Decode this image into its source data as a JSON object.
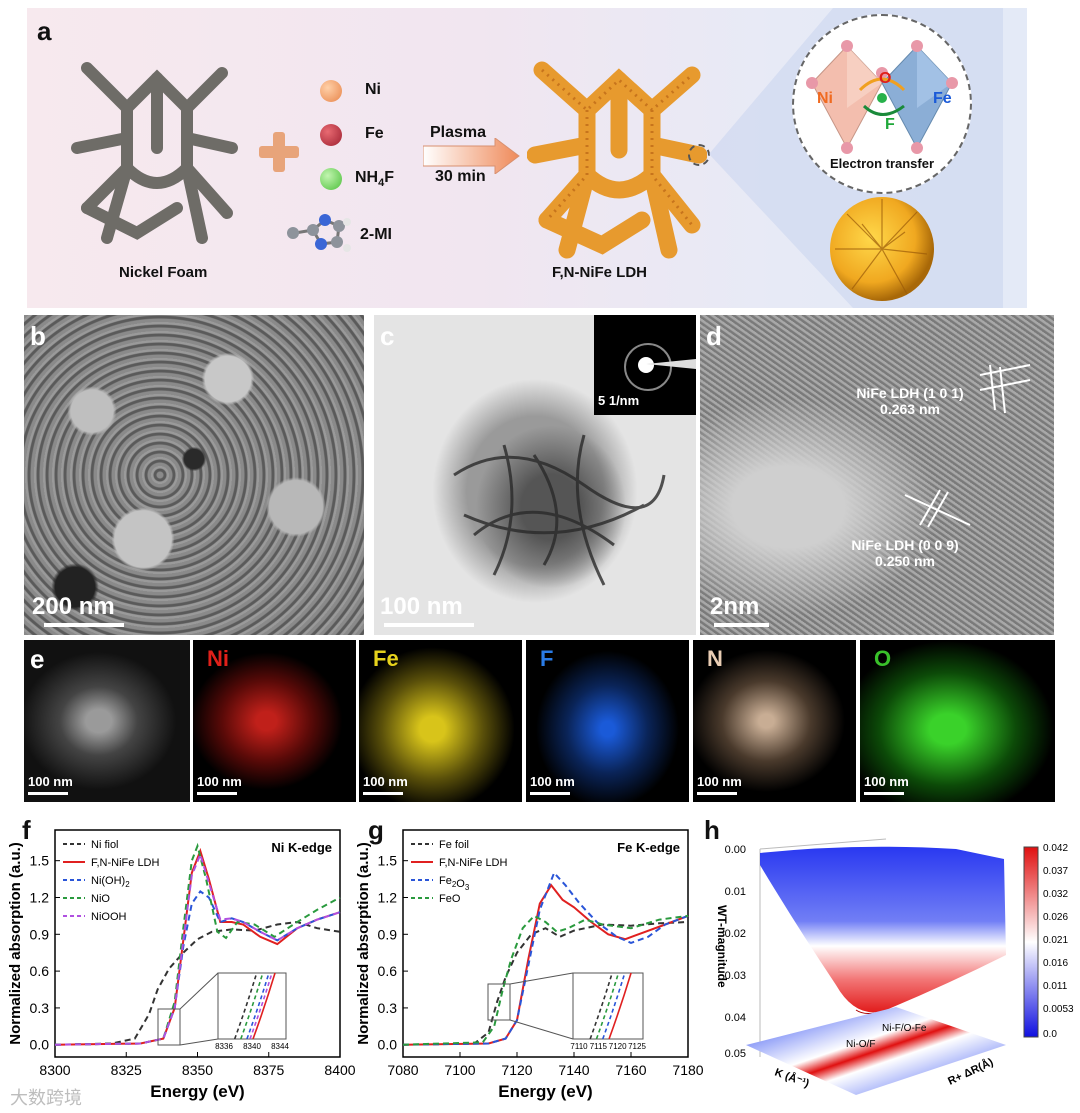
{
  "panel_a": {
    "letter": "a",
    "nickel_foam_label": "Nickel Foam",
    "reagents": [
      {
        "symbol": "Ni",
        "color": "#f0a06a"
      },
      {
        "symbol": "Fe",
        "color": "#b8343f"
      },
      {
        "symbol": "NH4F",
        "color": "#6ccf5a"
      },
      {
        "symbol": "2-MI",
        "color": "#9aa0a8"
      }
    ],
    "arrow_top": "Plasma",
    "arrow_bottom": "30 min",
    "product_label": "F,N-NiFe LDH",
    "inset_ni": "Ni",
    "inset_o": "O",
    "inset_fe": "Fe",
    "inset_f": "F",
    "inset_caption": "Electron transfer"
  },
  "panel_b": {
    "letter": "b",
    "scale": "200 nm"
  },
  "panel_c": {
    "letter": "c",
    "scale": "100 nm",
    "inset_scale": "5 1/nm"
  },
  "panel_d": {
    "letter": "d",
    "scale": "2nm",
    "lattice1_line1": "NiFe LDH (1 0 1)",
    "lattice1_line2": "0.263 nm",
    "lattice2_line1": "NiFe LDH (0 0 9)",
    "lattice2_line2": "0.250 nm"
  },
  "panel_e": {
    "letter": "e",
    "maps": [
      {
        "label": "",
        "scale": "100 nm",
        "color": "#dddddd"
      },
      {
        "label": "Ni",
        "scale": "100 nm",
        "color": "#e0201a"
      },
      {
        "label": "Fe",
        "scale": "100 nm",
        "color": "#e6d21c"
      },
      {
        "label": "F",
        "scale": "100 nm",
        "color": "#2a7be6"
      },
      {
        "label": "N",
        "scale": "100 nm",
        "color": "#e9cdb4"
      },
      {
        "label": "O",
        "scale": "100 nm",
        "color": "#39c12a"
      }
    ]
  },
  "chart_data": [
    {
      "panel": "f",
      "type": "line",
      "annotation": "Ni K-edge",
      "xlabel": "Energy (eV)",
      "ylabel": "Normalized absorption (a.u.)",
      "xlim": [
        8300,
        8400
      ],
      "ylim": [
        -0.1,
        1.75
      ],
      "xticks": [
        8300,
        8325,
        8350,
        8375,
        8400
      ],
      "yticks": [
        0.0,
        0.3,
        0.6,
        0.9,
        1.2,
        1.5
      ],
      "inset_xticks": [
        8336,
        8340,
        8344
      ],
      "series": [
        {
          "name": "Ni fiol",
          "color": "#333333",
          "dash": "6,4",
          "x": [
            8300,
            8320,
            8328,
            8333,
            8336,
            8340,
            8345,
            8350,
            8355,
            8362,
            8370,
            8378,
            8385,
            8392,
            8400
          ],
          "y": [
            0.0,
            0.01,
            0.05,
            0.25,
            0.45,
            0.62,
            0.75,
            0.86,
            0.92,
            0.94,
            0.93,
            0.98,
            1.0,
            0.95,
            0.92
          ]
        },
        {
          "name": "F,N-NiFe LDH",
          "color": "#e02020",
          "dash": "",
          "x": [
            8300,
            8330,
            8338,
            8342,
            8345,
            8348,
            8351,
            8354,
            8358,
            8362,
            8366,
            8372,
            8378,
            8385,
            8392,
            8400
          ],
          "y": [
            0.0,
            0.01,
            0.05,
            0.3,
            0.85,
            1.4,
            1.58,
            1.35,
            1.0,
            1.0,
            0.98,
            0.88,
            0.82,
            0.95,
            1.02,
            1.08
          ]
        },
        {
          "name": "Ni(OH)2",
          "color": "#2a55d8",
          "dash": "6,4",
          "x": [
            8300,
            8330,
            8338,
            8342,
            8345,
            8348,
            8351,
            8354,
            8358,
            8362,
            8366,
            8372,
            8378,
            8385,
            8392,
            8400
          ],
          "y": [
            0.0,
            0.01,
            0.05,
            0.3,
            0.8,
            1.15,
            1.25,
            1.2,
            1.0,
            1.03,
            1.0,
            0.92,
            0.85,
            0.95,
            1.02,
            1.08
          ]
        },
        {
          "name": "NiO",
          "color": "#2a9a3e",
          "dash": "6,4",
          "x": [
            8300,
            8330,
            8338,
            8342,
            8345,
            8348,
            8350,
            8353,
            8357,
            8360,
            8364,
            8370,
            8377,
            8385,
            8392,
            8400
          ],
          "y": [
            0.0,
            0.01,
            0.05,
            0.35,
            0.95,
            1.5,
            1.62,
            1.35,
            0.92,
            0.87,
            1.0,
            0.98,
            0.88,
            1.0,
            1.1,
            1.2
          ]
        },
        {
          "name": "NiOOH",
          "color": "#b050e0",
          "dash": "6,4",
          "x": [
            8300,
            8330,
            8338,
            8342,
            8345,
            8348,
            8351,
            8354,
            8358,
            8362,
            8366,
            8372,
            8378,
            8385,
            8392,
            8400
          ],
          "y": [
            0.0,
            0.01,
            0.05,
            0.3,
            0.85,
            1.38,
            1.55,
            1.32,
            1.02,
            1.03,
            1.0,
            0.92,
            0.85,
            0.95,
            1.02,
            1.08
          ]
        }
      ]
    },
    {
      "panel": "g",
      "type": "line",
      "annotation": "Fe K-edge",
      "xlabel": "Energy (eV)",
      "ylabel": "Normalized absorption (a.u.)",
      "xlim": [
        7080,
        7180
      ],
      "ylim": [
        -0.1,
        1.75
      ],
      "xticks": [
        7080,
        7100,
        7120,
        7140,
        7160,
        7180
      ],
      "yticks": [
        0.0,
        0.3,
        0.6,
        0.9,
        1.2,
        1.5
      ],
      "inset_xticks": [
        7110,
        7115,
        7120,
        7125
      ],
      "series": [
        {
          "name": "Fe foil",
          "color": "#333333",
          "dash": "6,4",
          "x": [
            7080,
            7105,
            7110,
            7113,
            7116,
            7120,
            7125,
            7130,
            7135,
            7140,
            7150,
            7160,
            7170,
            7180
          ],
          "y": [
            0.0,
            0.01,
            0.1,
            0.35,
            0.55,
            0.75,
            0.9,
            0.95,
            0.88,
            0.93,
            0.98,
            0.97,
            0.99,
            1.0
          ]
        },
        {
          "name": "F,N-NiFe LDH",
          "color": "#e02020",
          "dash": "",
          "x": [
            7080,
            7110,
            7116,
            7120,
            7124,
            7128,
            7132,
            7136,
            7140,
            7146,
            7152,
            7158,
            7165,
            7172,
            7180
          ],
          "y": [
            0.0,
            0.01,
            0.05,
            0.2,
            0.7,
            1.15,
            1.3,
            1.18,
            1.12,
            1.0,
            0.9,
            0.86,
            0.92,
            0.98,
            1.05
          ]
        },
        {
          "name": "Fe2O3",
          "color": "#2a55d8",
          "dash": "6,4",
          "x": [
            7080,
            7110,
            7116,
            7120,
            7124,
            7128,
            7133,
            7137,
            7142,
            7148,
            7155,
            7160,
            7166,
            7172,
            7180
          ],
          "y": [
            0.0,
            0.01,
            0.05,
            0.2,
            0.65,
            1.1,
            1.4,
            1.3,
            1.15,
            1.0,
            0.88,
            0.83,
            0.88,
            0.98,
            1.05
          ]
        },
        {
          "name": "FeO",
          "color": "#2a9a3e",
          "dash": "6,4",
          "x": [
            7080,
            7108,
            7112,
            7115,
            7118,
            7122,
            7126,
            7130,
            7134,
            7138,
            7144,
            7150,
            7160,
            7170,
            7180
          ],
          "y": [
            0.0,
            0.02,
            0.15,
            0.45,
            0.7,
            0.95,
            1.05,
            1.0,
            0.92,
            0.95,
            1.02,
            0.98,
            0.95,
            1.02,
            1.05
          ]
        }
      ]
    },
    {
      "panel": "h",
      "type": "heatmap",
      "zlabel": "WT-magnitude",
      "xlabel": "K (Å⁻¹)",
      "ylabel": "R+ ΔR(Å)",
      "zticks": [
        "0.00",
        "0.01",
        "0.02",
        "0.03",
        "0.04",
        "0.05"
      ],
      "colorbar_ticks": [
        "0.042",
        "0.037",
        "0.032",
        "0.026",
        "0.021",
        "0.016",
        "0.011",
        "0.0053",
        "0.0"
      ],
      "annotations": [
        "Ni-F/O-Fe",
        "Ni-O/F"
      ]
    }
  ],
  "watermark": "大数跨境"
}
